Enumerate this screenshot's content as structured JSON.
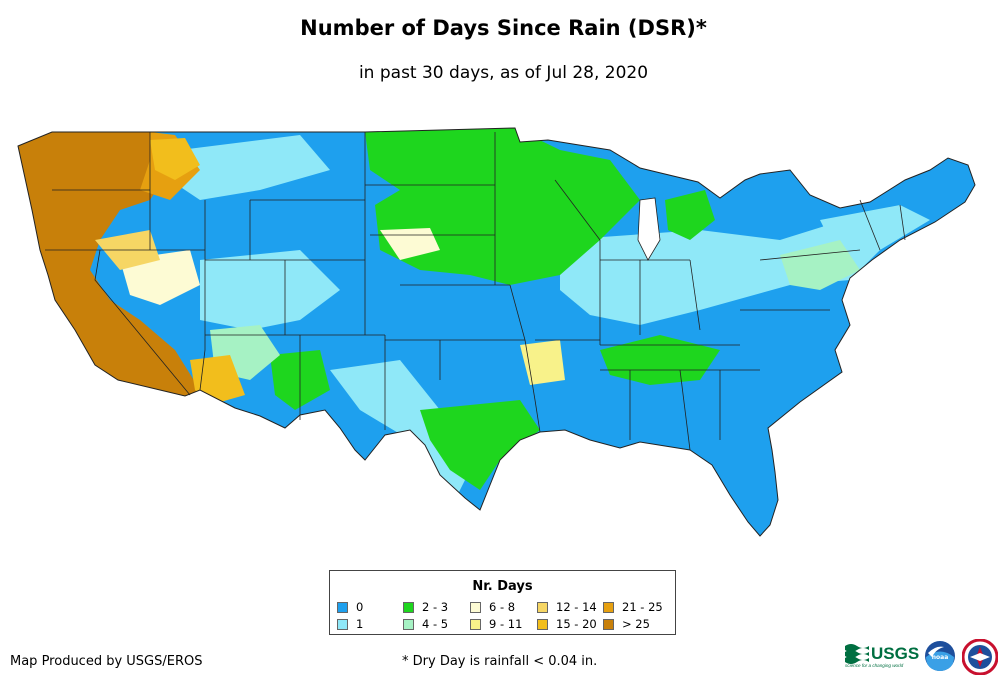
{
  "header": {
    "title": "Number of Days Since Rain (DSR)*",
    "subtitle": "in past 30 days, as of Jul 28, 2020"
  },
  "map": {
    "region": "Contiguous United States",
    "shading": "number of days since rain per location"
  },
  "legend": {
    "title": "Nr. Days",
    "items": [
      {
        "label": "0",
        "color": "#1ea0ee"
      },
      {
        "label": "1",
        "color": "#8fe8f8"
      },
      {
        "label": "2 - 3",
        "color": "#1ed61e"
      },
      {
        "label": "4 - 5",
        "color": "#a6f2c4"
      },
      {
        "label": "6 - 8",
        "color": "#fdfbd4"
      },
      {
        "label": "9 - 11",
        "color": "#f8f28a"
      },
      {
        "label": "12 - 14",
        "color": "#f6d664"
      },
      {
        "label": "15 - 20",
        "color": "#f2be1c"
      },
      {
        "label": "21 - 25",
        "color": "#e6a010"
      },
      {
        "label": "> 25",
        "color": "#c8800a"
      }
    ]
  },
  "footer": {
    "credit": "Map Produced by USGS/EROS",
    "footnote": "* Dry Day is rainfall < 0.04 in.",
    "usgs_logo_text": "USGS",
    "usgs_tagline": "science for a changing world",
    "noaa_logo_text": "noaa"
  }
}
